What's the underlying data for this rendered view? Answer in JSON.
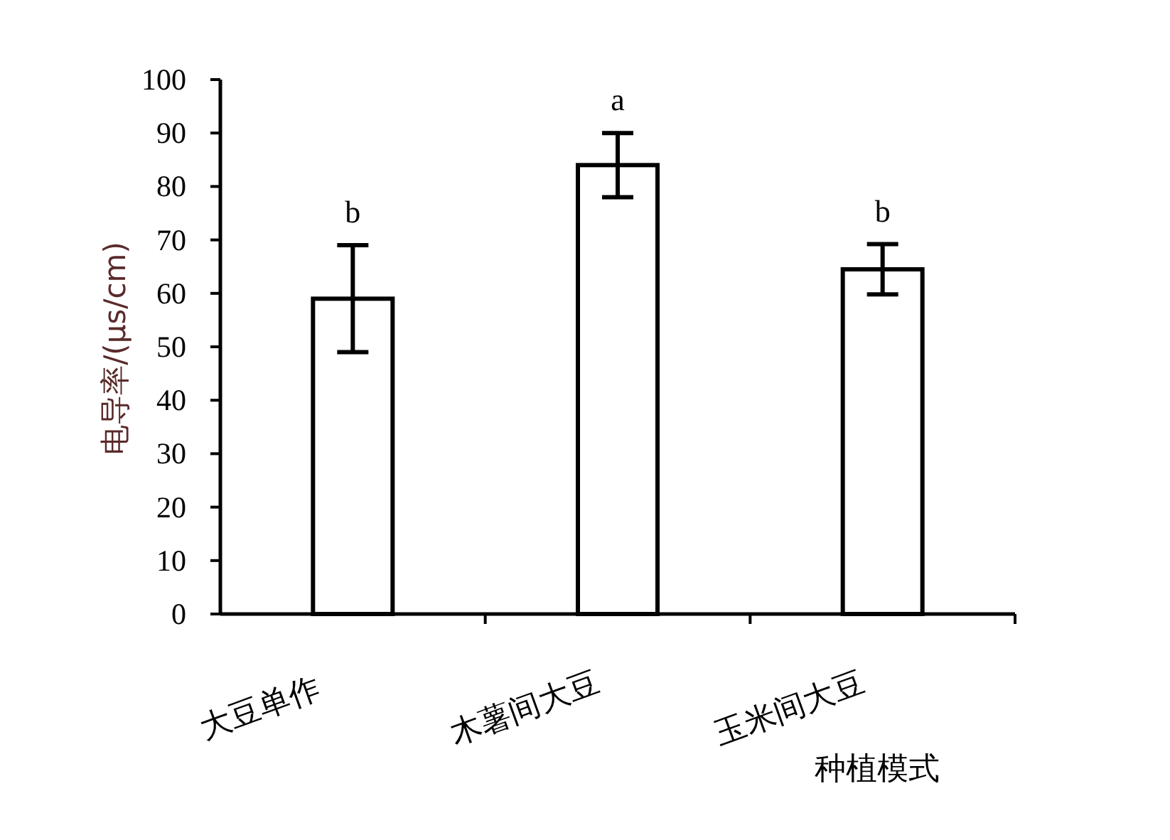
{
  "chart_data": {
    "type": "bar",
    "categories": [
      "大豆单作",
      "木薯间大豆",
      "玉米间大豆"
    ],
    "values": [
      59,
      84,
      64.5
    ],
    "errors": [
      10,
      6,
      4.7
    ],
    "color": "#ffffff",
    "xlabel": "种植模式",
    "ylabel": "电导率/(μs/cm)",
    "ylim": [
      0,
      100
    ],
    "yticks": [
      0,
      10,
      20,
      30,
      40,
      50,
      60,
      70,
      80,
      90,
      100
    ],
    "annotations": [
      "b",
      "a",
      "b"
    ]
  }
}
